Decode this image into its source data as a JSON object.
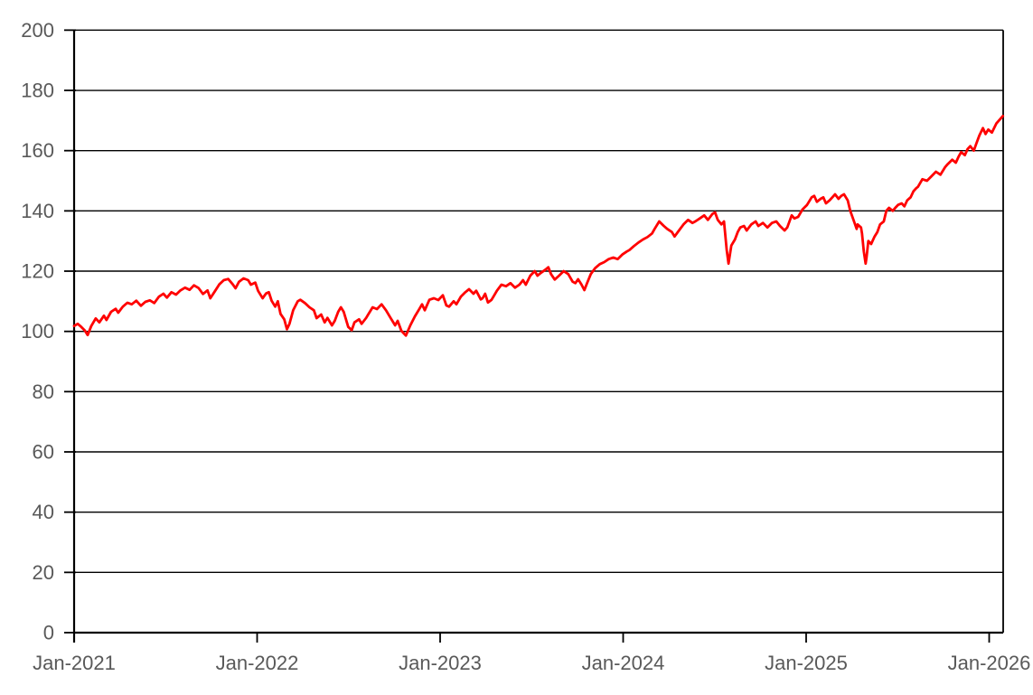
{
  "chart_data": {
    "type": "line",
    "title": "",
    "xlabel": "",
    "ylabel": "",
    "legend": "none",
    "grid": "horizontal",
    "ylim": [
      0,
      200
    ],
    "y_tick_step": 20,
    "y_tick_values": [
      0,
      20,
      40,
      60,
      80,
      100,
      120,
      140,
      160,
      180,
      200
    ],
    "y_tick_labels": [
      "0",
      "20",
      "40",
      "60",
      "80",
      "100",
      "120",
      "140",
      "160",
      "180",
      "200"
    ],
    "x_unit": "decimal_year",
    "x_tick_values": [
      2021,
      2022,
      2023,
      2024,
      2025,
      2026
    ],
    "x_tick_labels": [
      "Jan-2021",
      "Jan-2022",
      "Jan-2023",
      "Jan-2024",
      "Jan-2025",
      "Jan-2026"
    ],
    "xlim": [
      2021.0,
      2026.076
    ],
    "colors": {
      "line": "#FF0000",
      "axis": "#000000",
      "gridline": "#000000",
      "plot_border": "#000000",
      "tick_label": "#595959",
      "background": "#FFFFFF"
    },
    "series": [
      {
        "color": "#FF0000",
        "points": [
          [
            2021.0,
            101.8
          ],
          [
            2021.02,
            102.5
          ],
          [
            2021.039,
            101.5
          ],
          [
            2021.059,
            100.3
          ],
          [
            2021.074,
            98.8
          ],
          [
            2021.094,
            101.8
          ],
          [
            2021.118,
            104.3
          ],
          [
            2021.138,
            103.0
          ],
          [
            2021.163,
            105.2
          ],
          [
            2021.177,
            103.8
          ],
          [
            2021.202,
            106.5
          ],
          [
            2021.227,
            107.5
          ],
          [
            2021.241,
            106.2
          ],
          [
            2021.266,
            108.2
          ],
          [
            2021.291,
            109.5
          ],
          [
            2021.315,
            109.0
          ],
          [
            2021.34,
            110.2
          ],
          [
            2021.365,
            108.5
          ],
          [
            2021.389,
            109.8
          ],
          [
            2021.414,
            110.3
          ],
          [
            2021.438,
            109.4
          ],
          [
            2021.463,
            111.5
          ],
          [
            2021.488,
            112.5
          ],
          [
            2021.507,
            111.2
          ],
          [
            2021.532,
            113.0
          ],
          [
            2021.557,
            112.2
          ],
          [
            2021.581,
            113.6
          ],
          [
            2021.606,
            114.5
          ],
          [
            2021.631,
            113.8
          ],
          [
            2021.655,
            115.3
          ],
          [
            2021.68,
            114.4
          ],
          [
            2021.704,
            112.4
          ],
          [
            2021.729,
            113.6
          ],
          [
            2021.744,
            111.0
          ],
          [
            2021.768,
            113.2
          ],
          [
            2021.793,
            115.6
          ],
          [
            2021.818,
            117.0
          ],
          [
            2021.842,
            117.4
          ],
          [
            2021.867,
            115.6
          ],
          [
            2021.882,
            114.3
          ],
          [
            2021.901,
            116.5
          ],
          [
            2021.926,
            117.6
          ],
          [
            2021.951,
            117.0
          ],
          [
            2021.966,
            115.5
          ],
          [
            2021.99,
            116.2
          ],
          [
            2022.005,
            113.5
          ],
          [
            2022.03,
            111.0
          ],
          [
            2022.049,
            112.6
          ],
          [
            2022.064,
            113.0
          ],
          [
            2022.079,
            110.2
          ],
          [
            2022.099,
            108.2
          ],
          [
            2022.113,
            110.0
          ],
          [
            2022.128,
            105.8
          ],
          [
            2022.148,
            104.0
          ],
          [
            2022.163,
            100.7
          ],
          [
            2022.177,
            102.5
          ],
          [
            2022.197,
            107.0
          ],
          [
            2022.222,
            110.0
          ],
          [
            2022.236,
            110.5
          ],
          [
            2022.261,
            109.4
          ],
          [
            2022.286,
            108.0
          ],
          [
            2022.31,
            107.0
          ],
          [
            2022.325,
            104.4
          ],
          [
            2022.35,
            105.6
          ],
          [
            2022.369,
            103.0
          ],
          [
            2022.384,
            104.5
          ],
          [
            2022.409,
            102.0
          ],
          [
            2022.424,
            103.5
          ],
          [
            2022.443,
            106.5
          ],
          [
            2022.458,
            108.0
          ],
          [
            2022.473,
            106.5
          ],
          [
            2022.498,
            101.5
          ],
          [
            2022.517,
            100.4
          ],
          [
            2022.532,
            103.0
          ],
          [
            2022.557,
            104.0
          ],
          [
            2022.571,
            102.5
          ],
          [
            2022.596,
            104.5
          ],
          [
            2022.606,
            105.5
          ],
          [
            2022.631,
            108.0
          ],
          [
            2022.655,
            107.4
          ],
          [
            2022.68,
            109.0
          ],
          [
            2022.704,
            107.0
          ],
          [
            2022.729,
            104.5
          ],
          [
            2022.754,
            102.0
          ],
          [
            2022.768,
            103.5
          ],
          [
            2022.788,
            100.2
          ],
          [
            2022.813,
            98.6
          ],
          [
            2022.837,
            102.0
          ],
          [
            2022.862,
            105.0
          ],
          [
            2022.887,
            107.5
          ],
          [
            2022.901,
            109.0
          ],
          [
            2022.916,
            107.0
          ],
          [
            2022.941,
            110.5
          ],
          [
            2022.966,
            111.0
          ],
          [
            2022.99,
            110.4
          ],
          [
            2023.015,
            112.0
          ],
          [
            2023.034,
            108.6
          ],
          [
            2023.049,
            108.2
          ],
          [
            2023.074,
            110.0
          ],
          [
            2023.089,
            109.0
          ],
          [
            2023.113,
            111.5
          ],
          [
            2023.138,
            113.0
          ],
          [
            2023.158,
            114.0
          ],
          [
            2023.182,
            112.5
          ],
          [
            2023.197,
            113.5
          ],
          [
            2023.222,
            110.6
          ],
          [
            2023.232,
            111.0
          ],
          [
            2023.246,
            112.5
          ],
          [
            2023.261,
            109.6
          ],
          [
            2023.281,
            110.5
          ],
          [
            2023.296,
            112.0
          ],
          [
            2023.31,
            113.5
          ],
          [
            2023.335,
            115.5
          ],
          [
            2023.36,
            115.0
          ],
          [
            2023.384,
            116.0
          ],
          [
            2023.409,
            114.5
          ],
          [
            2023.433,
            115.5
          ],
          [
            2023.453,
            117.0
          ],
          [
            2023.468,
            115.5
          ],
          [
            2023.493,
            118.5
          ],
          [
            2023.517,
            120.0
          ],
          [
            2023.532,
            118.5
          ],
          [
            2023.552,
            119.5
          ],
          [
            2023.576,
            120.5
          ],
          [
            2023.591,
            121.3
          ],
          [
            2023.606,
            119.0
          ],
          [
            2023.626,
            117.2
          ],
          [
            2023.65,
            118.5
          ],
          [
            2023.675,
            120.0
          ],
          [
            2023.7,
            119.0
          ],
          [
            2023.724,
            116.5
          ],
          [
            2023.739,
            116.0
          ],
          [
            2023.754,
            117.3
          ],
          [
            2023.773,
            115.5
          ],
          [
            2023.788,
            113.7
          ],
          [
            2023.803,
            116.0
          ],
          [
            2023.823,
            119.0
          ],
          [
            2023.847,
            121.0
          ],
          [
            2023.872,
            122.3
          ],
          [
            2023.897,
            123.0
          ],
          [
            2023.921,
            124.0
          ],
          [
            2023.946,
            124.5
          ],
          [
            2023.97,
            124.0
          ],
          [
            2023.995,
            125.5
          ],
          [
            2024.02,
            126.5
          ],
          [
            2024.034,
            127.0
          ],
          [
            2024.059,
            128.3
          ],
          [
            2024.084,
            129.5
          ],
          [
            2024.108,
            130.5
          ],
          [
            2024.133,
            131.3
          ],
          [
            2024.158,
            132.5
          ],
          [
            2024.172,
            134.0
          ],
          [
            2024.197,
            136.5
          ],
          [
            2024.222,
            135.0
          ],
          [
            2024.241,
            134.0
          ],
          [
            2024.266,
            133.0
          ],
          [
            2024.281,
            131.5
          ],
          [
            2024.305,
            133.5
          ],
          [
            2024.33,
            135.5
          ],
          [
            2024.355,
            137.0
          ],
          [
            2024.379,
            136.0
          ],
          [
            2024.394,
            136.5
          ],
          [
            2024.419,
            137.5
          ],
          [
            2024.443,
            138.5
          ],
          [
            2024.463,
            137.0
          ],
          [
            2024.488,
            139.0
          ],
          [
            2024.502,
            139.5
          ],
          [
            2024.517,
            137.0
          ],
          [
            2024.537,
            135.5
          ],
          [
            2024.551,
            136.5
          ],
          [
            2024.566,
            127.0
          ],
          [
            2024.576,
            122.5
          ],
          [
            2024.591,
            128.5
          ],
          [
            2024.611,
            130.5
          ],
          [
            2024.626,
            133.0
          ],
          [
            2024.64,
            134.5
          ],
          [
            2024.66,
            135.0
          ],
          [
            2024.675,
            133.5
          ],
          [
            2024.7,
            135.5
          ],
          [
            2024.724,
            136.5
          ],
          [
            2024.739,
            135.0
          ],
          [
            2024.764,
            136.0
          ],
          [
            2024.788,
            134.5
          ],
          [
            2024.813,
            136.0
          ],
          [
            2024.837,
            136.5
          ],
          [
            2024.857,
            135.0
          ],
          [
            2024.882,
            133.5
          ],
          [
            2024.897,
            134.5
          ],
          [
            2024.921,
            138.5
          ],
          [
            2024.936,
            137.5
          ],
          [
            2024.956,
            138.0
          ],
          [
            2024.98,
            140.5
          ],
          [
            2025.005,
            142.0
          ],
          [
            2025.03,
            144.5
          ],
          [
            2025.044,
            145.0
          ],
          [
            2025.059,
            143.0
          ],
          [
            2025.079,
            144.0
          ],
          [
            2025.094,
            144.5
          ],
          [
            2025.108,
            142.5
          ],
          [
            2025.128,
            143.5
          ],
          [
            2025.143,
            144.5
          ],
          [
            2025.158,
            145.5
          ],
          [
            2025.177,
            144.0
          ],
          [
            2025.192,
            145.0
          ],
          [
            2025.207,
            145.5
          ],
          [
            2025.227,
            143.5
          ],
          [
            2025.241,
            140.0
          ],
          [
            2025.256,
            137.5
          ],
          [
            2025.276,
            134.0
          ],
          [
            2025.281,
            135.5
          ],
          [
            2025.3,
            134.5
          ],
          [
            2025.305,
            132.5
          ],
          [
            2025.315,
            126.5
          ],
          [
            2025.325,
            122.5
          ],
          [
            2025.33,
            124.5
          ],
          [
            2025.34,
            130.0
          ],
          [
            2025.355,
            129.0
          ],
          [
            2025.374,
            131.5
          ],
          [
            2025.389,
            133.0
          ],
          [
            2025.404,
            135.5
          ],
          [
            2025.424,
            136.5
          ],
          [
            2025.438,
            140.0
          ],
          [
            2025.453,
            141.0
          ],
          [
            2025.473,
            140.0
          ],
          [
            2025.487,
            141.0
          ],
          [
            2025.502,
            142.0
          ],
          [
            2025.522,
            142.5
          ],
          [
            2025.537,
            141.5
          ],
          [
            2025.552,
            143.5
          ],
          [
            2025.571,
            144.5
          ],
          [
            2025.586,
            146.5
          ],
          [
            2025.601,
            147.5
          ],
          [
            2025.611,
            148.0
          ],
          [
            2025.635,
            150.5
          ],
          [
            2025.66,
            150.0
          ],
          [
            2025.685,
            151.5
          ],
          [
            2025.709,
            153.0
          ],
          [
            2025.734,
            152.0
          ],
          [
            2025.759,
            154.5
          ],
          [
            2025.773,
            155.5
          ],
          [
            2025.798,
            157.0
          ],
          [
            2025.818,
            156.0
          ],
          [
            2025.833,
            158.0
          ],
          [
            2025.847,
            159.5
          ],
          [
            2025.867,
            158.5
          ],
          [
            2025.882,
            160.5
          ],
          [
            2025.897,
            161.5
          ],
          [
            2025.916,
            160.0
          ],
          [
            2025.931,
            162.5
          ],
          [
            2025.946,
            165.0
          ],
          [
            2025.966,
            167.5
          ],
          [
            2025.98,
            165.5
          ],
          [
            2025.995,
            167.0
          ],
          [
            2026.015,
            166.0
          ],
          [
            2026.039,
            169.0
          ],
          [
            2026.075,
            171.5
          ]
        ]
      }
    ]
  }
}
